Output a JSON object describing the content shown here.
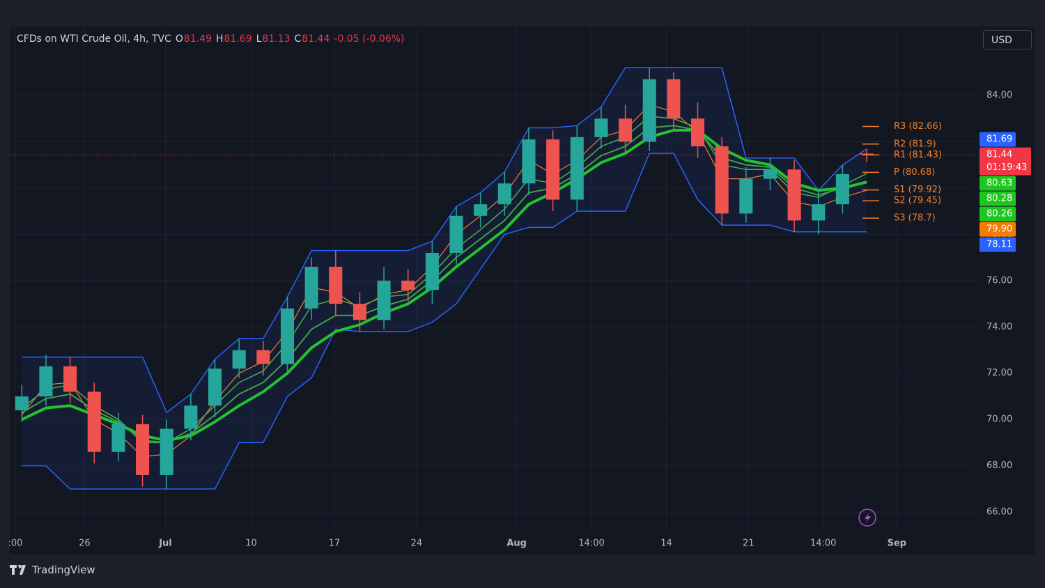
{
  "chart_data": {
    "type": "candlestick",
    "title": "CFDs on WTI Crude Oil, 4h, TVC",
    "ohlc_labels": [
      "O",
      "H",
      "L",
      "C"
    ],
    "change": "-0.05 (-0.06%)",
    "currency": "USD",
    "branding": "TradingView",
    "up_color": "#26a69a",
    "down_color": "#ef5350",
    "grid": true,
    "xlim": [
      0,
      80
    ],
    "ylim": [
      65.13,
      86.98
    ],
    "yticks": [
      {
        "value": 66,
        "label": "66.00"
      },
      {
        "value": 68,
        "label": "68.00"
      },
      {
        "value": 70,
        "label": "70.00"
      },
      {
        "value": 72,
        "label": "72.00"
      },
      {
        "value": 74,
        "label": "74.00"
      },
      {
        "value": 76,
        "label": "76.00"
      },
      {
        "value": 78,
        "label": "78.00"
      },
      {
        "value": 80,
        "label": "80.00"
      },
      {
        "value": 82,
        "label": "82.00"
      },
      {
        "value": 84,
        "label": "84.00"
      }
    ],
    "xticks": [
      {
        "value": 0.46,
        "label": ":00"
      },
      {
        "value": 6.2,
        "label": "26"
      },
      {
        "value": 12.9,
        "label": "Jul"
      },
      {
        "value": 20.0,
        "label": "10"
      },
      {
        "value": 26.9,
        "label": "17"
      },
      {
        "value": 33.7,
        "label": "24"
      },
      {
        "value": 42.0,
        "label": "Aug"
      },
      {
        "value": 48.2,
        "label": "14:00"
      },
      {
        "value": 54.4,
        "label": "14"
      },
      {
        "value": 61.2,
        "label": "21"
      },
      {
        "value": 67.4,
        "label": "14:00"
      },
      {
        "value": 73.5,
        "label": "Sep"
      }
    ],
    "candles": {
      "x": [
        1,
        3,
        5,
        7,
        9,
        11,
        13,
        15,
        17,
        19,
        21,
        23,
        25,
        27,
        29,
        31,
        33,
        35,
        37,
        39,
        41,
        43,
        45,
        47,
        49,
        51,
        53,
        55,
        57,
        59,
        61,
        63,
        65,
        67,
        69,
        71
      ],
      "open": [
        70.4,
        71.0,
        72.3,
        71.2,
        68.6,
        69.8,
        67.6,
        69.6,
        70.6,
        72.2,
        73.0,
        72.4,
        74.8,
        76.6,
        75.0,
        74.3,
        76.0,
        75.6,
        77.2,
        78.8,
        79.3,
        80.2,
        82.1,
        79.5,
        82.2,
        83.0,
        82.0,
        84.7,
        83.0,
        81.8,
        78.9,
        80.4,
        80.8,
        78.6,
        79.3,
        81.49
      ],
      "high": [
        71.5,
        72.8,
        72.7,
        71.6,
        70.3,
        70.2,
        70.0,
        71.1,
        72.6,
        73.5,
        73.4,
        75.3,
        77.0,
        77.3,
        75.5,
        76.6,
        76.5,
        77.7,
        79.2,
        79.8,
        80.7,
        82.6,
        82.5,
        82.7,
        83.5,
        83.6,
        85.2,
        85.0,
        83.7,
        82.2,
        80.9,
        81.3,
        81.2,
        79.9,
        81.0,
        81.69
      ],
      "low": [
        69.9,
        70.6,
        70.7,
        68.1,
        68.2,
        67.1,
        67.0,
        69.1,
        70.1,
        71.8,
        71.9,
        72.0,
        74.3,
        74.5,
        73.8,
        73.9,
        75.1,
        75.0,
        76.7,
        78.3,
        78.8,
        79.7,
        79.0,
        79.0,
        81.7,
        81.5,
        81.6,
        82.5,
        81.3,
        78.4,
        78.5,
        79.9,
        78.1,
        78.0,
        78.9,
        81.13
      ],
      "close": [
        71.0,
        72.3,
        71.2,
        68.6,
        69.8,
        67.6,
        69.6,
        70.6,
        72.2,
        73.0,
        72.4,
        74.8,
        76.6,
        75.0,
        74.3,
        76.0,
        75.6,
        77.2,
        78.8,
        79.3,
        80.2,
        82.1,
        79.5,
        82.2,
        83.0,
        82.0,
        84.7,
        83.0,
        81.8,
        78.9,
        80.4,
        80.8,
        78.6,
        79.3,
        80.6,
        81.44
      ]
    },
    "channel": {
      "color": "#2962ff",
      "upper": [
        72.7,
        72.7,
        72.7,
        72.7,
        72.7,
        72.7,
        70.3,
        71.1,
        72.6,
        73.5,
        73.5,
        75.3,
        77.3,
        77.3,
        77.3,
        77.3,
        77.3,
        77.7,
        79.2,
        79.8,
        80.7,
        82.6,
        82.6,
        82.7,
        83.5,
        85.2,
        85.2,
        85.2,
        85.2,
        85.2,
        81.3,
        81.3,
        81.3,
        79.9,
        81.0,
        81.69
      ],
      "lower": [
        68.0,
        68.0,
        67.0,
        67.0,
        67.0,
        67.0,
        67.0,
        67.0,
        67.0,
        69.0,
        69.0,
        71.0,
        71.8,
        73.9,
        73.8,
        73.8,
        73.8,
        74.2,
        75.0,
        76.5,
        78.0,
        78.3,
        78.3,
        79.0,
        79.0,
        79.0,
        81.5,
        81.5,
        79.5,
        78.4,
        78.4,
        78.4,
        78.11,
        78.11,
        78.11,
        78.11
      ]
    },
    "series": [
      {
        "color": "#f0802a",
        "width": 1.2,
        "values": [
          70.2,
          71.5,
          71.6,
          70.0,
          69.4,
          68.4,
          68.5,
          69.3,
          70.8,
          72.0,
          72.5,
          73.8,
          75.7,
          75.5,
          74.8,
          75.4,
          75.6,
          76.6,
          78.0,
          78.8,
          79.7,
          81.2,
          80.6,
          81.2,
          82.2,
          82.5,
          83.6,
          83.3,
          82.4,
          80.4,
          80.4,
          80.6,
          79.4,
          79.2,
          79.6,
          79.9
        ]
      },
      {
        "color": "#4caf50",
        "width": 1.5,
        "values": [
          70.5,
          71.3,
          71.5,
          70.6,
          70.0,
          69.0,
          69.0,
          69.6,
          70.6,
          71.6,
          72.1,
          73.3,
          74.9,
          75.2,
          74.9,
          75.3,
          75.4,
          76.3,
          77.4,
          78.2,
          79.1,
          80.4,
          80.2,
          80.9,
          81.8,
          82.2,
          83.1,
          83.0,
          82.6,
          81.0,
          80.8,
          80.8,
          79.8,
          79.6,
          80.1,
          80.63
        ]
      },
      {
        "color": "#43a047",
        "width": 2,
        "values": [
          70.3,
          70.9,
          71.1,
          70.4,
          69.9,
          69.1,
          69.0,
          69.4,
          70.2,
          71.1,
          71.6,
          72.6,
          73.9,
          74.5,
          74.5,
          74.9,
          75.2,
          76.0,
          77.0,
          77.8,
          78.6,
          79.8,
          80.0,
          80.6,
          81.4,
          81.8,
          82.6,
          82.7,
          82.5,
          81.3,
          81.0,
          80.9,
          80.0,
          79.7,
          80.0,
          80.28
        ]
      },
      {
        "color": "#22c32e",
        "width": 4,
        "values": [
          70.0,
          70.5,
          70.6,
          70.2,
          69.8,
          69.3,
          69.1,
          69.3,
          69.9,
          70.6,
          71.2,
          72.0,
          73.1,
          73.8,
          74.1,
          74.6,
          75.0,
          75.7,
          76.6,
          77.4,
          78.2,
          79.3,
          79.8,
          80.4,
          81.1,
          81.5,
          82.2,
          82.5,
          82.5,
          81.7,
          81.2,
          81.0,
          80.2,
          79.9,
          80.0,
          80.26
        ]
      }
    ],
    "pivots": {
      "color": "#f0802a",
      "levels": [
        {
          "label": "R3 (82.66)",
          "value": 82.66
        },
        {
          "label": "R2 (81.9)",
          "value": 81.9
        },
        {
          "label": "R1 (81.43)",
          "value": 81.43
        },
        {
          "label": "P (80.68)",
          "value": 80.68
        },
        {
          "label": "S1 (79.92)",
          "value": 79.92
        },
        {
          "label": "S2 (79.45)",
          "value": 79.45
        },
        {
          "label": "S3 (78.7)",
          "value": 78.7
        }
      ]
    },
    "price_badges": [
      {
        "value": 81.69,
        "label": "81.69",
        "color": "#2962ff"
      },
      {
        "value": 81.44,
        "label": "81.44",
        "countdown": "01:19:43",
        "color": "#f23645"
      },
      {
        "value": 80.63,
        "label": "80.63",
        "color": "#1fc61f"
      },
      {
        "value": 80.28,
        "label": "80.28",
        "color": "#1fc61f"
      },
      {
        "value": 80.26,
        "label": "80.26",
        "color": "#1fc61f"
      },
      {
        "value": 79.9,
        "label": "79.90",
        "color": "#f57c00"
      },
      {
        "value": 78.11,
        "label": "78.11",
        "color": "#2962ff"
      }
    ]
  }
}
